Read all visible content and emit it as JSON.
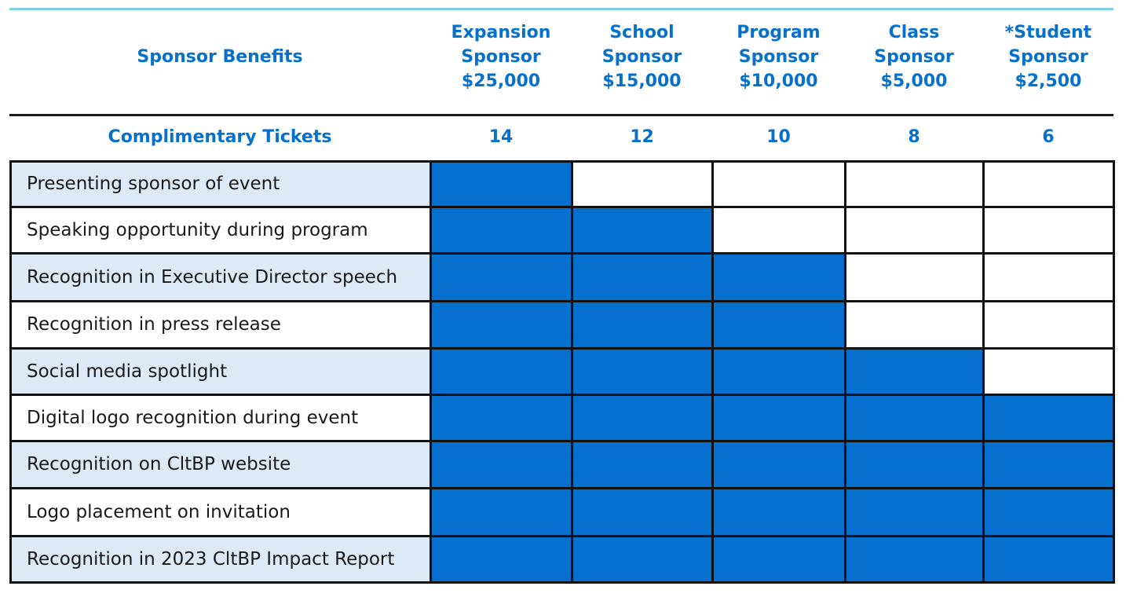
{
  "colors": {
    "accent": "#0571cc",
    "filled": "#0670cf",
    "stripe": "#dce9f7",
    "rule": "#7fd3e0"
  },
  "header": {
    "benefits_label": "Sponsor Benefits",
    "tiers": [
      {
        "line1": "Expansion",
        "line2": "Sponsor",
        "price": "$25,000",
        "tickets": "14"
      },
      {
        "line1": "School",
        "line2": "Sponsor",
        "price": "$15,000",
        "tickets": "12"
      },
      {
        "line1": "Program",
        "line2": "Sponsor",
        "price": "$10,000",
        "tickets": "10"
      },
      {
        "line1": "Class",
        "line2": "Sponsor",
        "price": "$5,000",
        "tickets": "8"
      },
      {
        "line1": "*Student",
        "line2": "Sponsor",
        "price": "$2,500",
        "tickets": "6"
      }
    ]
  },
  "tickets_label": "Complimentary Tickets",
  "benefits": [
    {
      "label": "Presenting sponsor of event",
      "included": [
        true,
        false,
        false,
        false,
        false
      ]
    },
    {
      "label": "Speaking opportunity during program",
      "included": [
        true,
        true,
        false,
        false,
        false
      ]
    },
    {
      "label": "Recognition in Executive Director speech",
      "included": [
        true,
        true,
        true,
        false,
        false
      ]
    },
    {
      "label": "Recognition in press release",
      "included": [
        true,
        true,
        true,
        false,
        false
      ]
    },
    {
      "label": "Social media spotlight",
      "included": [
        true,
        true,
        true,
        true,
        false
      ]
    },
    {
      "label": "Digital logo recognition during event",
      "included": [
        true,
        true,
        true,
        true,
        true
      ]
    },
    {
      "label": "Recognition on CltBP website",
      "included": [
        true,
        true,
        true,
        true,
        true
      ]
    },
    {
      "label": "Logo placement on invitation",
      "included": [
        true,
        true,
        true,
        true,
        true
      ]
    },
    {
      "label": "Recognition in 2023 CltBP Impact Report",
      "included": [
        true,
        true,
        true,
        true,
        true
      ]
    }
  ]
}
